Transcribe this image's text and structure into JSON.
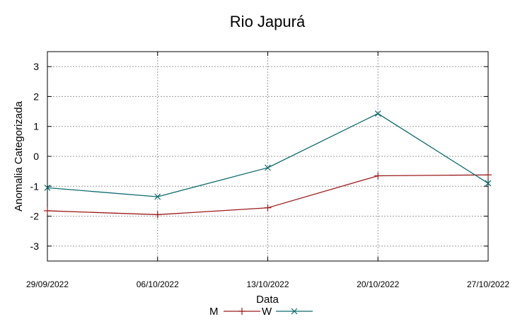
{
  "chart_data": {
    "type": "line",
    "title": "Rio Japurá",
    "xlabel": "Data",
    "ylabel": "Anomalia Categorizada",
    "categories": [
      "29/09/2022",
      "06/10/2022",
      "13/10/2022",
      "20/10/2022",
      "27/10/2022"
    ],
    "ylim": [
      -3.5,
      3.5
    ],
    "yticks": [
      -3,
      -2,
      -1,
      0,
      1,
      2,
      3
    ],
    "grid": true,
    "legend_position": "bottom",
    "series": [
      {
        "name": "M",
        "color": "#9b1b1b",
        "marker": "plus",
        "values": [
          -1.82,
          -1.95,
          -1.72,
          -0.65,
          -0.62
        ]
      },
      {
        "name": "W",
        "color": "#0e6b6b",
        "marker": "x",
        "values": [
          -1.05,
          -1.35,
          -0.38,
          1.43,
          -0.9
        ]
      }
    ]
  }
}
